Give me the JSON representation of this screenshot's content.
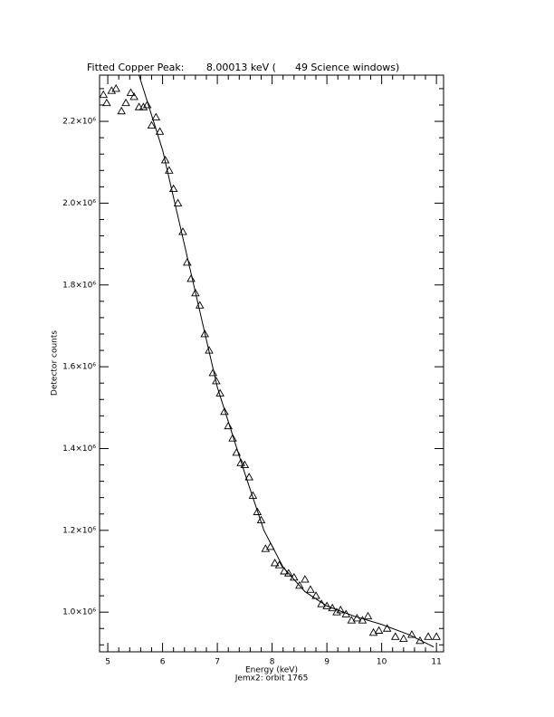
{
  "chart_data": {
    "type": "scatter",
    "title": "Fitted Copper Peak:       8.00013 keV (      49 Science windows)",
    "x_label": "Energy (keV)",
    "subtitle": "Jemx2: orbit 1765",
    "y_label": "Detector counts",
    "xlim": [
      4.85,
      11.13
    ],
    "ylim": [
      903000,
      2313000
    ],
    "xticks": [
      5,
      6,
      7,
      8,
      9,
      10,
      11
    ],
    "yticks": [
      {
        "value": 1000000,
        "label": "1.0×10⁶"
      },
      {
        "value": 1200000,
        "label": "1.2×10⁶"
      },
      {
        "value": 1400000,
        "label": "1.4×10⁶"
      },
      {
        "value": 1600000,
        "label": "1.6×10⁶"
      },
      {
        "value": 1800000,
        "label": "1.8×10⁶"
      },
      {
        "value": 2000000,
        "label": "2.0×10⁶"
      },
      {
        "value": 2200000,
        "label": "2.2×10⁶"
      }
    ],
    "color": "#000000",
    "series": [
      {
        "marker": "triangle",
        "x": [
          4.92,
          4.98,
          5.07,
          5.15,
          5.25,
          5.33,
          5.42,
          5.48,
          5.57,
          5.65,
          5.72,
          5.8,
          5.88,
          5.95,
          6.05,
          6.12,
          6.2,
          6.28,
          6.37,
          6.45,
          6.52,
          6.6,
          6.68,
          6.77,
          6.85,
          6.92,
          6.98,
          7.05,
          7.13,
          7.2,
          7.28,
          7.35,
          7.43,
          7.5,
          7.58,
          7.65,
          7.73,
          7.8,
          7.88,
          7.97,
          8.05,
          8.13,
          8.22,
          8.3,
          8.4,
          8.5,
          8.6,
          8.7,
          8.8,
          8.9,
          9.0,
          9.1,
          9.18,
          9.25,
          9.35,
          9.45,
          9.55,
          9.65,
          9.75,
          9.85,
          9.95,
          10.1,
          10.25,
          10.4,
          10.55,
          10.7,
          10.85,
          11.0
        ],
        "values": [
          2265000,
          2245000,
          2275000,
          2280000,
          2225000,
          2245000,
          2270000,
          2260000,
          2235000,
          2235000,
          2240000,
          2190000,
          2210000,
          2175000,
          2105000,
          2080000,
          2035000,
          2000000,
          1930000,
          1855000,
          1815000,
          1780000,
          1750000,
          1680000,
          1640000,
          1585000,
          1565000,
          1535000,
          1490000,
          1455000,
          1425000,
          1390000,
          1365000,
          1360000,
          1330000,
          1285000,
          1245000,
          1225000,
          1155000,
          1160000,
          1120000,
          1115000,
          1100000,
          1095000,
          1085000,
          1065000,
          1080000,
          1055000,
          1040000,
          1020000,
          1015000,
          1010000,
          1000000,
          1005000,
          995000,
          980000,
          985000,
          980000,
          990000,
          950000,
          955000,
          960000,
          940000,
          935000,
          945000,
          930000,
          940000,
          940000
        ]
      },
      {
        "marker": "line",
        "x": [
          5.57,
          6.0,
          6.5,
          7.0,
          7.5,
          7.85,
          8.2,
          8.6,
          9.0,
          9.5,
          10.0,
          10.5,
          10.95
        ],
        "values": [
          2313000,
          2130000,
          1840000,
          1550000,
          1340000,
          1200000,
          1110000,
          1050000,
          1015000,
          990000,
          970000,
          945000,
          915000
        ]
      }
    ]
  }
}
